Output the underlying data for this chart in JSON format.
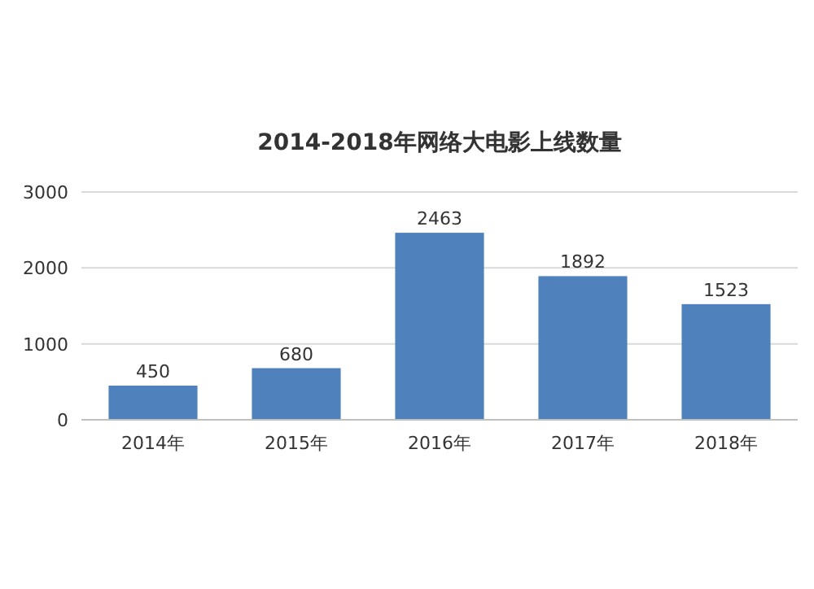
{
  "chart_data": {
    "type": "bar",
    "title": "2014-2018年网络大电影上线数量",
    "categories": [
      "2014年",
      "2015年",
      "2016年",
      "2017年",
      "2018年"
    ],
    "values": [
      450,
      680,
      2463,
      1892,
      1523
    ],
    "color": "#4f81bd",
    "ylim": [
      0,
      3000
    ],
    "yticks": [
      0,
      1000,
      2000,
      3000
    ],
    "grid": "y",
    "data_labels": true
  }
}
